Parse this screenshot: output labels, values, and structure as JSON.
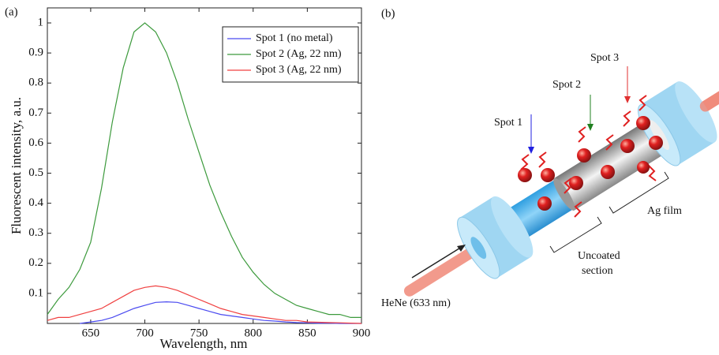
{
  "chart_data": {
    "type": "line",
    "panel_label": "(a)",
    "x_label": "Wavelength, nm",
    "y_label": "Fluorescent intensity, a.u.",
    "x": [
      610,
      620,
      630,
      640,
      650,
      660,
      670,
      680,
      690,
      700,
      710,
      720,
      730,
      740,
      750,
      760,
      770,
      780,
      790,
      800,
      810,
      820,
      830,
      840,
      850,
      860,
      870,
      880,
      890,
      900
    ],
    "series": [
      {
        "name": "Spot 1 (no metal)",
        "color": "#4a4af0",
        "values": [
          null,
          null,
          null,
          0,
          0.005,
          0.01,
          0.02,
          0.035,
          0.05,
          0.06,
          0.07,
          0.072,
          0.07,
          0.06,
          0.05,
          0.04,
          0.03,
          0.025,
          0.02,
          0.015,
          0.01,
          0.008,
          0.005,
          0.003,
          0.002,
          0.001,
          0.001,
          0,
          0,
          0
        ]
      },
      {
        "name": "Spot 2 (Ag, 22 nm)",
        "color": "#3c9a3c",
        "values": [
          0.03,
          0.08,
          0.12,
          0.18,
          0.27,
          0.45,
          0.67,
          0.85,
          0.97,
          1.0,
          0.97,
          0.9,
          0.8,
          0.68,
          0.57,
          0.46,
          0.37,
          0.29,
          0.22,
          0.17,
          0.13,
          0.1,
          0.08,
          0.06,
          0.05,
          0.04,
          0.03,
          0.03,
          0.02,
          0.02
        ]
      },
      {
        "name": "Spot 3 (Ag, 22 nm)",
        "color": "#f04040",
        "values": [
          0.01,
          0.02,
          0.02,
          0.03,
          0.04,
          0.05,
          0.07,
          0.09,
          0.11,
          0.12,
          0.125,
          0.12,
          0.11,
          0.095,
          0.08,
          0.065,
          0.05,
          0.04,
          0.03,
          0.025,
          0.02,
          0.015,
          0.01,
          0.01,
          0.005,
          0.004,
          0.003,
          0.002,
          0.001,
          0
        ]
      }
    ],
    "xlim": [
      610,
      900
    ],
    "xticks": [
      650,
      700,
      750,
      800,
      850,
      900
    ],
    "ylim": [
      0,
      1.05
    ],
    "yticks": [
      0.1,
      0.2,
      0.3,
      0.4,
      0.5,
      0.6,
      0.7,
      0.8,
      0.9,
      1
    ],
    "legend": "upper-right"
  },
  "diagram": {
    "panel_label": "(b)",
    "spot1": "Spot 1",
    "spot2": "Spot 2",
    "spot3": "Spot 3",
    "ag_film": "Ag film",
    "uncoated": [
      "Uncoated",
      "section"
    ],
    "laser": "HeNe (633 nm)"
  }
}
